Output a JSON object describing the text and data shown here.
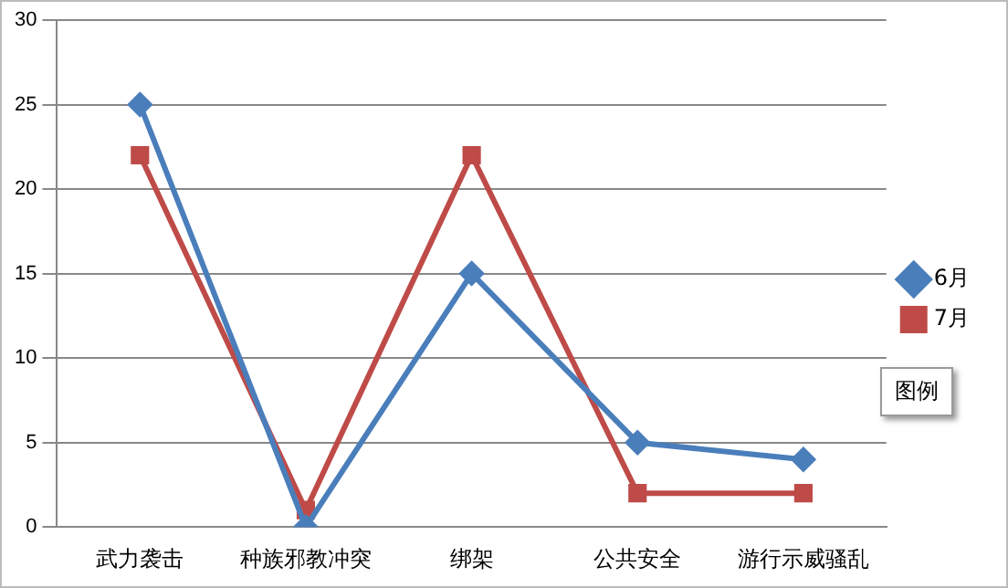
{
  "chart_data": {
    "type": "line",
    "categories": [
      "武力袭击",
      "种族邪教冲突",
      "绑架",
      "公共安全",
      "游行示威骚乱"
    ],
    "series": [
      {
        "name": "6月",
        "color": "#4a7ebb",
        "marker": "diamond",
        "values": [
          25,
          0,
          15,
          5,
          4
        ]
      },
      {
        "name": "7月",
        "color": "#be4b48",
        "marker": "square",
        "values": [
          22,
          1,
          22,
          2,
          2
        ]
      }
    ],
    "ylim": [
      0,
      30
    ],
    "yticks": [
      0,
      5,
      10,
      15,
      20,
      25,
      30
    ],
    "grid": "y",
    "legend": "right",
    "line_style": "solid",
    "annotations": [
      "图例"
    ]
  }
}
